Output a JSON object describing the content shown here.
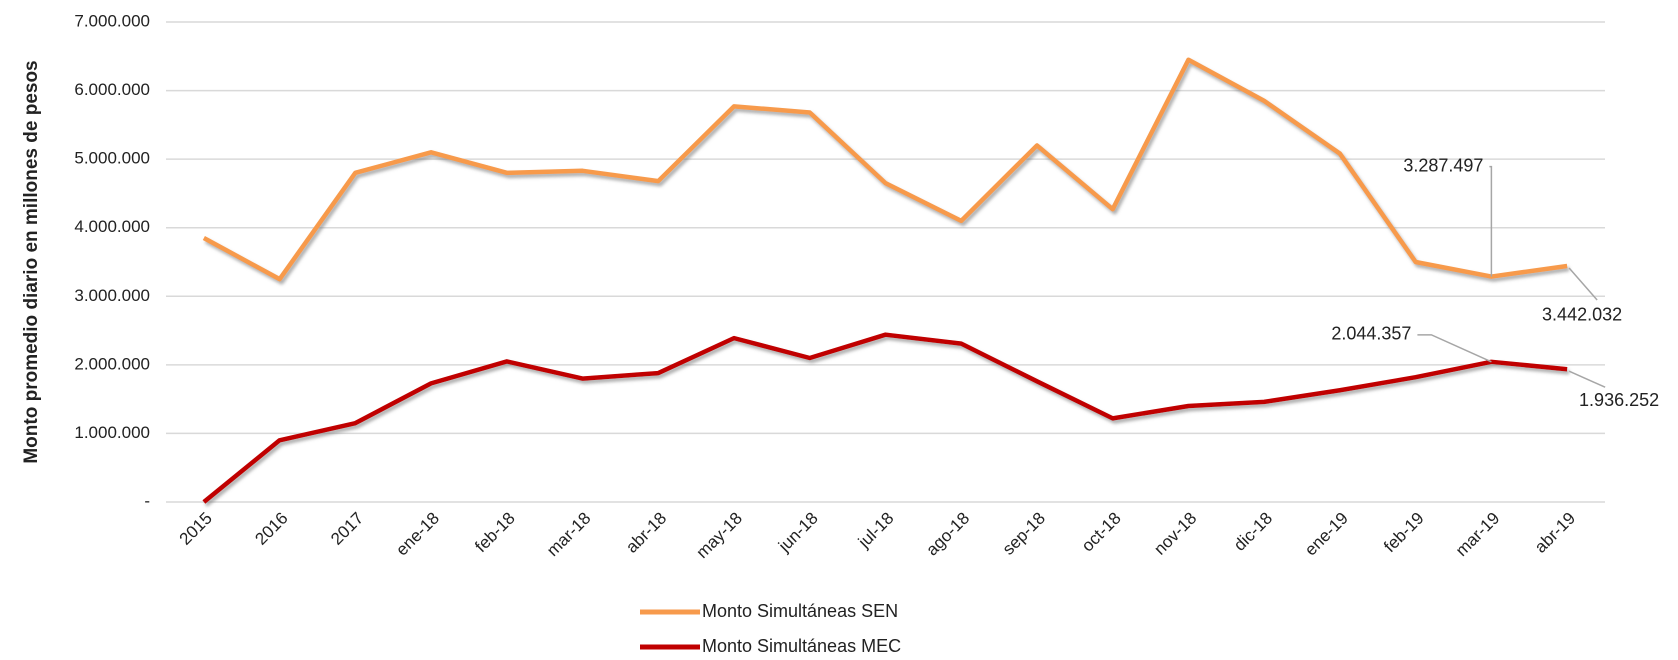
{
  "chart_data": {
    "type": "line",
    "y_label": "Monto promedio diario en millones de pesos",
    "categories": [
      "2015",
      "2016",
      "2017",
      "ene-18",
      "feb-18",
      "mar-18",
      "abr-18",
      "may-18",
      "jun-18",
      "jul-18",
      "ago-18",
      "sep-18",
      "oct-18",
      "nov-18",
      "dic-18",
      "ene-19",
      "feb-19",
      "mar-19",
      "abr-19"
    ],
    "series": [
      {
        "name": "Monto Simultáneas SEN",
        "color": "#f79a4c",
        "values": [
          3850000,
          3250000,
          4800000,
          5100000,
          4800000,
          4830000,
          4680000,
          5770000,
          5680000,
          4650000,
          4100000,
          5200000,
          4270000,
          6450000,
          5850000,
          5080000,
          3500000,
          3287497,
          3442032
        ],
        "value_labels": [
          null,
          null,
          null,
          null,
          null,
          null,
          null,
          null,
          null,
          null,
          null,
          null,
          null,
          null,
          null,
          null,
          null,
          "3.287.497",
          "3.442.032"
        ]
      },
      {
        "name": "Monto Simultáneas MEC",
        "color": "#c00000",
        "values": [
          0,
          900000,
          1150000,
          1730000,
          2050000,
          1800000,
          1880000,
          2390000,
          2100000,
          2440000,
          2310000,
          1760000,
          1220000,
          1400000,
          1460000,
          1630000,
          1820000,
          2044357,
          1936252
        ],
        "value_labels": [
          null,
          null,
          null,
          null,
          null,
          null,
          null,
          null,
          null,
          null,
          null,
          null,
          null,
          null,
          null,
          null,
          null,
          "2.044.357",
          "1.936.252"
        ]
      }
    ],
    "ylim": [
      0,
      7000000
    ],
    "yticks": [
      {
        "value": 0,
        "label": "-"
      },
      {
        "value": 1000000,
        "label": "1.000.000"
      },
      {
        "value": 2000000,
        "label": "2.000.000"
      },
      {
        "value": 3000000,
        "label": "3.000.000"
      },
      {
        "value": 4000000,
        "label": "4.000.000"
      },
      {
        "value": 5000000,
        "label": "5.000.000"
      },
      {
        "value": 6000000,
        "label": "6.000.000"
      },
      {
        "value": 7000000,
        "label": "7.000.000"
      }
    ],
    "grid": true,
    "legend": "bottom"
  }
}
